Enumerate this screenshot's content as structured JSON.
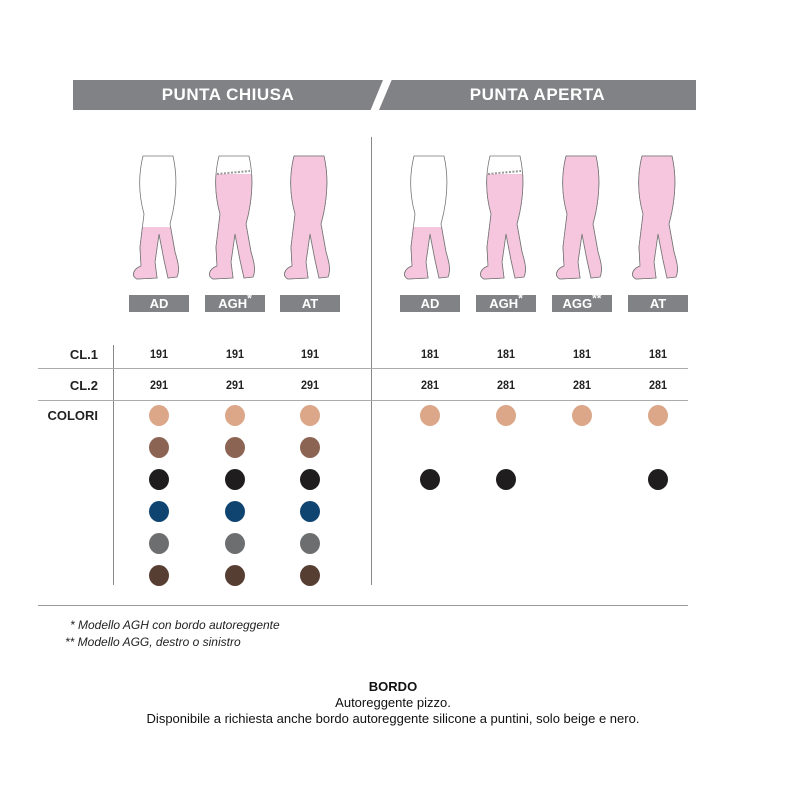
{
  "headers": {
    "closed": "PUNTA CHIUSA",
    "open": "PUNTA APERTA"
  },
  "closed_models": [
    {
      "code": "AD",
      "mark": "",
      "cl1": "191",
      "cl2": "291",
      "coverage": "knee",
      "colors": [
        "#dca689",
        "#8c6453",
        "#1f1d1e",
        "#0f4470",
        "#6d6e70",
        "#573e33"
      ]
    },
    {
      "code": "AGH",
      "mark": "*",
      "cl1": "191",
      "cl2": "291",
      "coverage": "thigh",
      "colors": [
        "#dca689",
        "#8c6453",
        "#1f1d1e",
        "#0f4470",
        "#6d6e70",
        "#573e33"
      ]
    },
    {
      "code": "AT",
      "mark": "",
      "cl1": "191",
      "cl2": "291",
      "coverage": "full",
      "colors": [
        "#dca689",
        "#8c6453",
        "#1f1d1e",
        "#0f4470",
        "#6d6e70",
        "#573e33"
      ]
    }
  ],
  "open_models": [
    {
      "code": "AD",
      "mark": "",
      "cl1": "181",
      "cl2": "281",
      "coverage": "knee",
      "colors": [
        "#dca689",
        null,
        "#1f1d1e"
      ]
    },
    {
      "code": "AGH",
      "mark": "*",
      "cl1": "181",
      "cl2": "281",
      "coverage": "thigh",
      "colors": [
        "#dca689",
        null,
        "#1f1d1e"
      ]
    },
    {
      "code": "AGG",
      "mark": "**",
      "cl1": "181",
      "cl2": "281",
      "coverage": "full",
      "colors": [
        "#dca689",
        null,
        null
      ]
    },
    {
      "code": "AT",
      "mark": "",
      "cl1": "181",
      "cl2": "281",
      "coverage": "full",
      "colors": [
        "#dca689",
        null,
        "#1f1d1e"
      ]
    }
  ],
  "rows": {
    "cl1": "CL.1",
    "cl2": "CL.2",
    "colors": "COLORI"
  },
  "footnotes": [
    "*  Modello AGH con bordo autoreggente",
    "**  Modello AGG, destro o sinistro"
  ],
  "bordo": {
    "title": "BORDO",
    "line1": "Autoreggente pizzo.",
    "line2": "Disponibile a richiesta anche bordo autoreggente silicone a puntini, solo beige e nero."
  },
  "colors": {
    "header_bg": "#818285",
    "stocking": "#f5c6de"
  }
}
